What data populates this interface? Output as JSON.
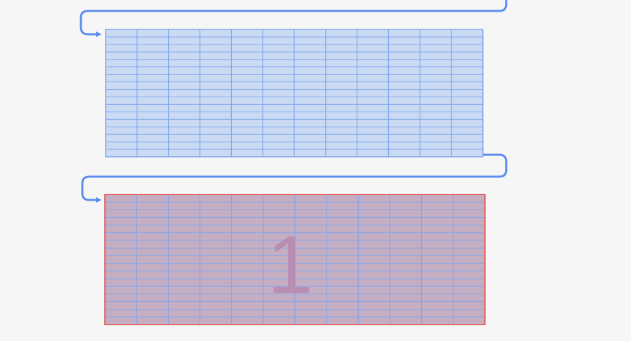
{
  "diagram": {
    "background_color": "#f6f6f6",
    "grid_columns": 12,
    "grid_rows": 17,
    "blocks": [
      {
        "id": "block-top",
        "fill": "#cbdaf3",
        "grid_line_color": "#7ea6ee",
        "border_color": "#7ea6ee",
        "highlighted": false,
        "label": ""
      },
      {
        "id": "block-bottom",
        "fill": "#c6aec2",
        "grid_line_color": "#7ea6ee",
        "border_color": "#e06868",
        "highlighted": true,
        "label": "1",
        "label_color": "#b88ab1"
      }
    ],
    "connector_color": "#5b8def"
  }
}
